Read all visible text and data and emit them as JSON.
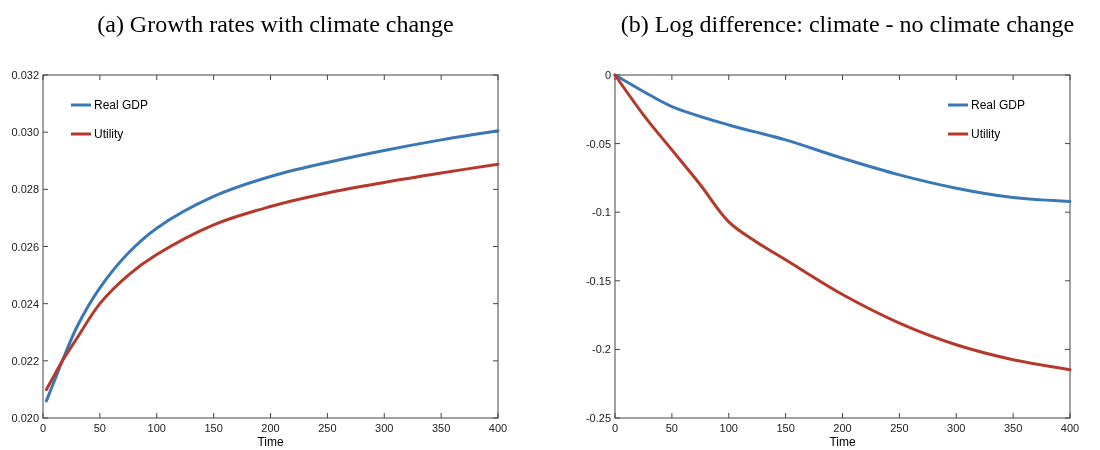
{
  "chart_data": [
    {
      "type": "line",
      "title": "(a) Growth rates with climate change",
      "xlabel": "Time",
      "xlim": [
        0,
        400
      ],
      "xticks": [
        0,
        50,
        100,
        150,
        200,
        250,
        300,
        350,
        400
      ],
      "ylim": [
        0.02,
        0.032
      ],
      "yticks": [
        {
          "value": 0.02,
          "label": "0.020"
        },
        {
          "value": 0.022,
          "label": "0.022"
        },
        {
          "value": 0.024,
          "label": "0.024"
        },
        {
          "value": 0.026,
          "label": "0.026"
        },
        {
          "value": 0.028,
          "label": "0.028"
        },
        {
          "value": 0.03,
          "label": "0.030"
        },
        {
          "value": 0.032,
          "label": "0.032"
        }
      ],
      "legend": "top left",
      "grid": false,
      "series": [
        {
          "name": "Real GDP",
          "color": "#3a78b5",
          "x": [
            3,
            10,
            17,
            30,
            50,
            75,
            100,
            150,
            200,
            250,
            300,
            350,
            400
          ],
          "values": [
            0.0206,
            0.0213,
            0.022,
            0.0232,
            0.02455,
            0.02577,
            0.02664,
            0.02775,
            0.02845,
            0.02894,
            0.02936,
            0.02973,
            0.03005
          ]
        },
        {
          "name": "Utility",
          "color": "#b5392a",
          "x": [
            3,
            10,
            17,
            30,
            50,
            75,
            100,
            150,
            200,
            250,
            300,
            350,
            400
          ],
          "values": [
            0.021,
            0.0215,
            0.022,
            0.0228,
            0.024,
            0.025,
            0.02572,
            0.02676,
            0.0274,
            0.02787,
            0.02824,
            0.02857,
            0.02888
          ]
        }
      ]
    },
    {
      "type": "line",
      "title": "(b) Log difference: climate - no climate change",
      "xlabel": "Time",
      "xlim": [
        0,
        400
      ],
      "xticks": [
        0,
        50,
        100,
        150,
        200,
        250,
        300,
        350,
        400
      ],
      "ylim": [
        -0.25,
        0
      ],
      "yticks": [
        -0.25,
        -0.2,
        -0.15,
        -0.1,
        -0.05,
        0
      ],
      "legend": "top right",
      "grid": false,
      "series": [
        {
          "name": "Real GDP",
          "color": "#3a78b5",
          "x": [
            0,
            25,
            50,
            100,
            150,
            200,
            250,
            300,
            350,
            400
          ],
          "values": [
            0,
            -0.012,
            -0.023,
            -0.0364,
            -0.0473,
            -0.0607,
            -0.0728,
            -0.0825,
            -0.0893,
            -0.0922
          ]
        },
        {
          "name": "Utility",
          "color": "#b5392a",
          "x": [
            0,
            25,
            50,
            75,
            100,
            125,
            150,
            200,
            250,
            300,
            350,
            400
          ],
          "values": [
            0,
            -0.029,
            -0.0546,
            -0.08,
            -0.107,
            -0.122,
            -0.1347,
            -0.16,
            -0.1808,
            -0.1966,
            -0.2075,
            -0.2148
          ]
        }
      ]
    }
  ]
}
